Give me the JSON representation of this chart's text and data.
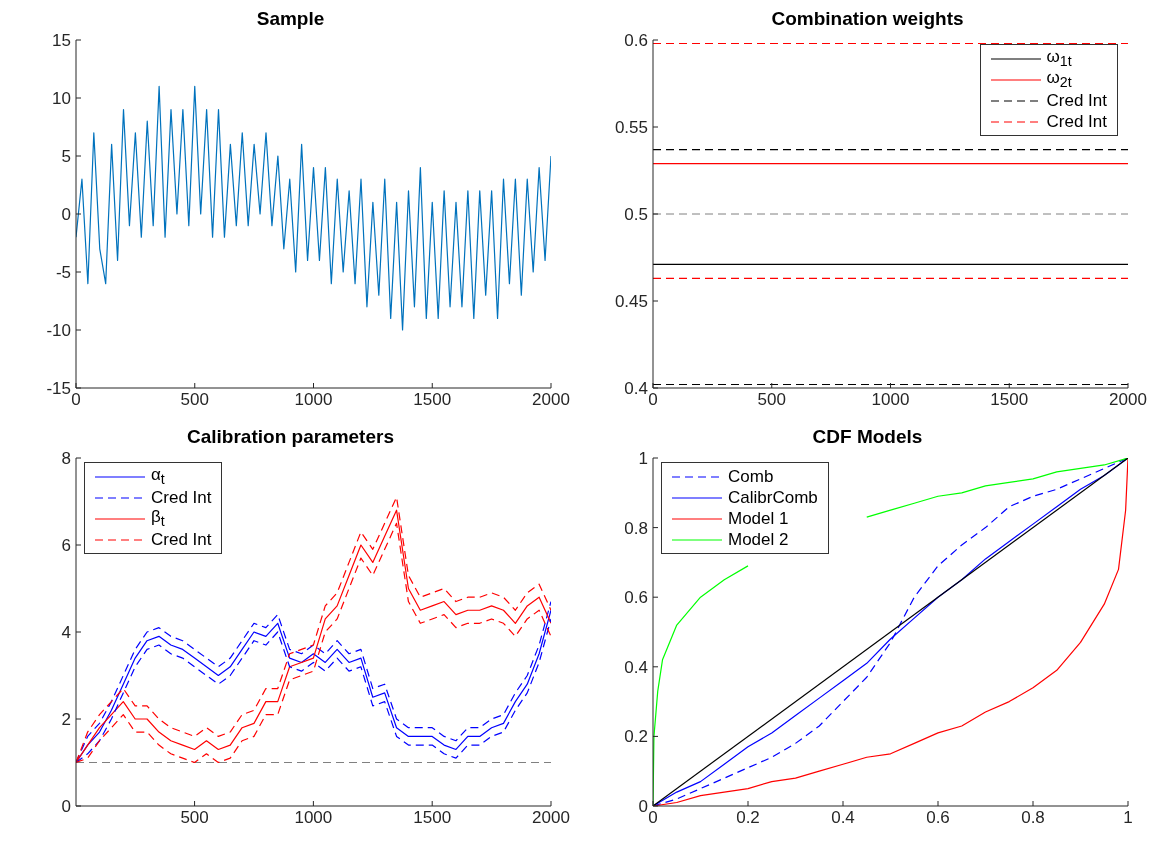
{
  "chart_data": [
    {
      "type": "line",
      "title": "Sample",
      "x": [
        0,
        25,
        50,
        75,
        100,
        125,
        150,
        175,
        200,
        225,
        250,
        275,
        300,
        325,
        350,
        375,
        400,
        425,
        450,
        475,
        500,
        525,
        550,
        575,
        600,
        625,
        650,
        675,
        700,
        725,
        750,
        775,
        800,
        825,
        850,
        875,
        900,
        925,
        950,
        975,
        1000,
        1025,
        1050,
        1075,
        1100,
        1125,
        1150,
        1175,
        1200,
        1225,
        1250,
        1275,
        1300,
        1325,
        1350,
        1375,
        1400,
        1425,
        1450,
        1475,
        1500,
        1525,
        1550,
        1575,
        1600,
        1625,
        1650,
        1675,
        1700,
        1725,
        1750,
        1775,
        1800,
        1825,
        1850,
        1875,
        1900,
        1925,
        1950,
        1975,
        2000
      ],
      "series": [
        {
          "color": "#0072bd",
          "values": [
            -2,
            3,
            -6,
            7,
            -3,
            -6,
            6,
            -4,
            9,
            -1,
            7,
            -2,
            8,
            -1,
            11,
            -2,
            9,
            0,
            9,
            -1,
            11,
            0,
            9,
            -2,
            9,
            -2,
            6,
            -1,
            7,
            -1,
            6,
            0,
            7,
            -1,
            5,
            -3,
            3,
            -5,
            6,
            -4,
            4,
            -4,
            4,
            -6,
            3,
            -5,
            2,
            -6,
            3,
            -8,
            1,
            -7,
            3,
            -9,
            1,
            -10,
            2,
            -8,
            4,
            -9,
            1,
            -9,
            2,
            -8,
            1,
            -8,
            2,
            -9,
            2,
            -7,
            2,
            -9,
            3,
            -6,
            3,
            -7,
            3,
            -5,
            4,
            -4,
            5
          ]
        }
      ],
      "xlim": [
        0,
        2000
      ],
      "xticks": [
        0,
        500,
        1000,
        1500,
        2000
      ],
      "ylim": [
        -15,
        15
      ],
      "yticks": [
        -15,
        -10,
        -5,
        0,
        5,
        10,
        15
      ],
      "legend": false
    },
    {
      "type": "line",
      "title": "Combination weights",
      "series": [
        {
          "name": "ω$_{1t}$",
          "color": "#000000",
          "x": [
            0,
            2000
          ],
          "values": [
            0.471,
            0.471
          ]
        },
        {
          "name": "ω$_{2t}$",
          "color": "#ff0000",
          "x": [
            0,
            2000
          ],
          "values": [
            0.529,
            0.529
          ]
        },
        {
          "name": "Cred Int",
          "color": "#000000",
          "line_style": "dashed",
          "x": [
            0,
            2000
          ],
          "values": [
            0.537,
            0.537
          ]
        },
        {
          "name": "Cred Int",
          "color": "#ff0000",
          "line_style": "dashed",
          "x": [
            0,
            2000
          ],
          "values": [
            0.598,
            0.598
          ]
        },
        {
          "color": "#000000",
          "line_style": "dashed",
          "x": [
            0,
            2000
          ],
          "values": [
            0.402,
            0.402
          ]
        },
        {
          "color": "#ff0000",
          "line_style": "dashed",
          "x": [
            0,
            2000
          ],
          "values": [
            0.463,
            0.463
          ]
        }
      ],
      "ref_lines": [
        {
          "axis": "y",
          "value": 0.5,
          "color": "#808080",
          "line_style": "dashed"
        }
      ],
      "xlim": [
        0,
        2000
      ],
      "xticks": [
        0,
        500,
        1000,
        1500,
        2000
      ],
      "ylim": [
        0.4,
        0.6
      ],
      "yticks": [
        0.4,
        0.45,
        0.5,
        0.55,
        0.6
      ],
      "legend": "top right"
    },
    {
      "type": "line",
      "title": "Calibration parameters",
      "x": [
        1,
        50,
        100,
        150,
        200,
        250,
        300,
        350,
        400,
        450,
        500,
        550,
        600,
        650,
        700,
        750,
        800,
        850,
        900,
        950,
        1000,
        1050,
        1100,
        1150,
        1200,
        1250,
        1300,
        1350,
        1400,
        1450,
        1500,
        1550,
        1600,
        1650,
        1700,
        1750,
        1800,
        1850,
        1900,
        1950,
        2000
      ],
      "series": [
        {
          "name": "α$_{t}$",
          "color": "#0000ff",
          "values": [
            1.0,
            1.4,
            1.7,
            2.2,
            2.8,
            3.4,
            3.8,
            3.9,
            3.7,
            3.6,
            3.4,
            3.2,
            3.0,
            3.2,
            3.6,
            4.0,
            3.9,
            4.2,
            3.4,
            3.3,
            3.5,
            3.3,
            3.6,
            3.3,
            3.4,
            2.5,
            2.6,
            1.8,
            1.6,
            1.6,
            1.6,
            1.4,
            1.3,
            1.6,
            1.6,
            1.8,
            1.9,
            2.4,
            2.8,
            3.5,
            4.5
          ]
        },
        {
          "name": "Cred Int",
          "color": "#0000ff",
          "line_style": "dashed",
          "values": [
            1.0,
            1.6,
            1.9,
            2.4,
            3.0,
            3.6,
            4.0,
            4.1,
            3.9,
            3.8,
            3.6,
            3.4,
            3.2,
            3.4,
            3.8,
            4.2,
            4.1,
            4.4,
            3.6,
            3.5,
            3.7,
            3.5,
            3.8,
            3.5,
            3.6,
            2.7,
            2.8,
            2.0,
            1.8,
            1.8,
            1.8,
            1.6,
            1.5,
            1.8,
            1.8,
            2.0,
            2.1,
            2.6,
            3.0,
            3.7,
            4.7
          ]
        },
        {
          "name": "β$_{t}$",
          "color": "#ff0000",
          "values": [
            1.0,
            1.4,
            1.8,
            2.1,
            2.4,
            2.0,
            2.0,
            1.7,
            1.5,
            1.4,
            1.3,
            1.5,
            1.3,
            1.4,
            1.8,
            1.9,
            2.4,
            2.4,
            3.2,
            3.3,
            3.4,
            4.3,
            4.6,
            5.3,
            6.0,
            5.6,
            6.2,
            6.8,
            5.0,
            4.5,
            4.6,
            4.7,
            4.4,
            4.5,
            4.5,
            4.6,
            4.5,
            4.2,
            4.6,
            4.8,
            4.2
          ]
        },
        {
          "name": "Cred Int",
          "color": "#ff0000",
          "line_style": "dashed",
          "values": [
            1.0,
            1.7,
            2.1,
            2.4,
            2.7,
            2.3,
            2.3,
            2.0,
            1.8,
            1.7,
            1.6,
            1.8,
            1.6,
            1.7,
            2.1,
            2.2,
            2.7,
            2.7,
            3.5,
            3.6,
            3.7,
            4.6,
            4.9,
            5.6,
            6.3,
            5.9,
            6.5,
            7.1,
            5.3,
            4.8,
            4.9,
            5.0,
            4.7,
            4.8,
            4.8,
            4.9,
            4.8,
            4.5,
            4.9,
            5.1,
            4.5
          ]
        },
        {
          "color": "#0000ff",
          "line_style": "dashed",
          "values": [
            1.0,
            1.2,
            1.5,
            2.0,
            2.6,
            3.2,
            3.6,
            3.7,
            3.5,
            3.4,
            3.2,
            3.0,
            2.8,
            3.0,
            3.4,
            3.8,
            3.7,
            4.0,
            3.2,
            3.1,
            3.3,
            3.1,
            3.4,
            3.1,
            3.2,
            2.3,
            2.4,
            1.6,
            1.4,
            1.4,
            1.4,
            1.2,
            1.1,
            1.4,
            1.4,
            1.6,
            1.7,
            2.2,
            2.6,
            3.3,
            4.3
          ]
        },
        {
          "color": "#ff0000",
          "line_style": "dashed",
          "values": [
            1.0,
            1.1,
            1.5,
            1.8,
            2.1,
            1.7,
            1.7,
            1.4,
            1.2,
            1.1,
            1.0,
            1.2,
            1.0,
            1.1,
            1.5,
            1.6,
            2.1,
            2.1,
            2.9,
            3.0,
            3.1,
            4.0,
            4.3,
            5.0,
            5.7,
            5.3,
            5.9,
            6.5,
            4.7,
            4.2,
            4.3,
            4.4,
            4.1,
            4.2,
            4.2,
            4.3,
            4.2,
            3.9,
            4.3,
            4.5,
            3.9
          ]
        }
      ],
      "ref_lines": [
        {
          "axis": "y",
          "value": 1,
          "color": "#808080",
          "line_style": "dashed"
        }
      ],
      "xlim": [
        1,
        2000
      ],
      "xticks": [
        500,
        1000,
        1500,
        2000
      ],
      "ylim": [
        0,
        8
      ],
      "yticks": [
        0,
        2,
        4,
        6,
        8
      ],
      "legend": "top left"
    },
    {
      "type": "line",
      "title": "CDF Models",
      "series": [
        {
          "name": "Comb",
          "color": "#0000ff",
          "line_style": "dashed",
          "x": [
            0,
            0.05,
            0.1,
            0.15,
            0.2,
            0.25,
            0.3,
            0.35,
            0.4,
            0.45,
            0.5,
            0.55,
            0.6,
            0.65,
            0.7,
            0.75,
            0.8,
            0.85,
            0.9,
            0.95,
            1
          ],
          "values": [
            0,
            0.02,
            0.05,
            0.08,
            0.11,
            0.14,
            0.18,
            0.23,
            0.3,
            0.37,
            0.47,
            0.6,
            0.69,
            0.75,
            0.8,
            0.86,
            0.89,
            0.91,
            0.94,
            0.97,
            1
          ]
        },
        {
          "name": "CalibrComb",
          "color": "#0000ff",
          "x": [
            0,
            0.05,
            0.1,
            0.15,
            0.2,
            0.25,
            0.3,
            0.35,
            0.4,
            0.45,
            0.5,
            0.55,
            0.6,
            0.65,
            0.7,
            0.75,
            0.8,
            0.85,
            0.9,
            0.95,
            1
          ],
          "values": [
            0,
            0.04,
            0.07,
            0.12,
            0.17,
            0.21,
            0.26,
            0.31,
            0.36,
            0.41,
            0.48,
            0.54,
            0.6,
            0.65,
            0.71,
            0.76,
            0.81,
            0.86,
            0.91,
            0.95,
            1
          ]
        },
        {
          "name": "Model 1",
          "color": "#ff0000",
          "x": [
            0,
            0.05,
            0.1,
            0.15,
            0.2,
            0.25,
            0.3,
            0.35,
            0.4,
            0.45,
            0.5,
            0.55,
            0.6,
            0.65,
            0.7,
            0.75,
            0.8,
            0.85,
            0.9,
            0.95,
            0.98,
            0.995,
            1
          ],
          "values": [
            0,
            0.01,
            0.03,
            0.04,
            0.05,
            0.07,
            0.08,
            0.1,
            0.12,
            0.14,
            0.15,
            0.18,
            0.21,
            0.23,
            0.27,
            0.3,
            0.34,
            0.39,
            0.47,
            0.58,
            0.68,
            0.85,
            1
          ]
        },
        {
          "name": "Model 2",
          "color": "#00ff00",
          "x": [
            0,
            0.002,
            0.01,
            0.02,
            0.05,
            0.1,
            0.15,
            0.2,
            0.25,
            0.3,
            0.35,
            0.4,
            0.45,
            0.5,
            0.55,
            0.6,
            0.65,
            0.7,
            0.75,
            0.8,
            0.85,
            0.9,
            0.95,
            1
          ],
          "values": [
            0,
            0.2,
            0.33,
            0.42,
            0.52,
            0.6,
            0.65,
            0.69,
            null,
            null,
            null,
            null,
            0.83,
            0.85,
            0.87,
            0.89,
            0.9,
            0.92,
            0.93,
            0.94,
            0.96,
            0.97,
            0.98,
            1
          ]
        },
        {
          "color": "#000000",
          "x": [
            0,
            1
          ],
          "values": [
            0,
            1
          ]
        }
      ],
      "xlim": [
        0,
        1
      ],
      "xticks": [
        0,
        0.2,
        0.4,
        0.6,
        0.8,
        1
      ],
      "ylim": [
        0,
        1
      ],
      "yticks": [
        0,
        0.2,
        0.4,
        0.6,
        0.8,
        1
      ],
      "legend": "top left"
    }
  ]
}
